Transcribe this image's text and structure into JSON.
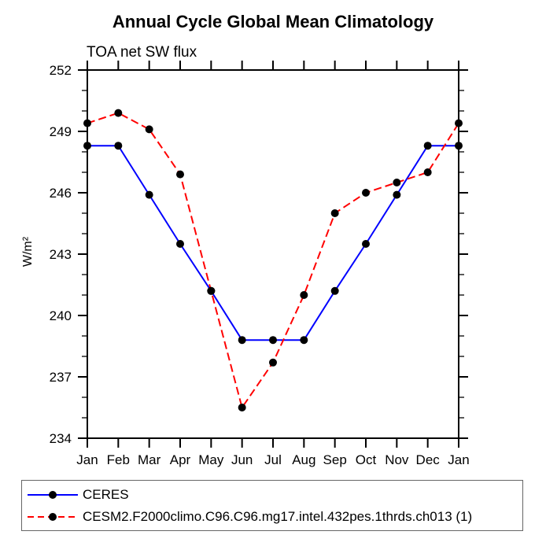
{
  "chart_data": {
    "type": "line",
    "title": "Annual Cycle Global Mean Climatology",
    "subtitle": "TOA net SW flux",
    "ylabel": "W/m²",
    "xlabel": "",
    "categories": [
      "Jan",
      "Feb",
      "Mar",
      "Apr",
      "May",
      "Jun",
      "Jul",
      "Aug",
      "Sep",
      "Oct",
      "Nov",
      "Dec",
      "Jan"
    ],
    "ylim": [
      234,
      252
    ],
    "y_major_step": 3,
    "y_minor_step": 1,
    "y_tick_labels": [
      "234",
      "237",
      "240",
      "243",
      "246",
      "249",
      "252"
    ],
    "grid": false,
    "legend_position": "bottom-left",
    "axis_color": "#000000",
    "series": [
      {
        "name": "CERES",
        "color": "#0000ff",
        "line_style": "solid",
        "marker": "filled-circle",
        "marker_color": "#000000",
        "values": [
          248.3,
          248.3,
          245.9,
          243.5,
          241.2,
          238.8,
          238.8,
          238.8,
          241.2,
          243.5,
          245.9,
          248.3,
          248.3
        ]
      },
      {
        "name": "CESM2.F2000climo.C96.C96.mg17.intel.432pes.1thrds.ch013 (1)",
        "color": "#ff0000",
        "line_style": "dashed",
        "marker": "filled-circle",
        "marker_color": "#000000",
        "values": [
          249.4,
          249.9,
          249.1,
          246.9,
          241.2,
          235.5,
          237.7,
          241.0,
          245.0,
          246.0,
          246.5,
          247.0,
          249.4
        ]
      }
    ]
  }
}
